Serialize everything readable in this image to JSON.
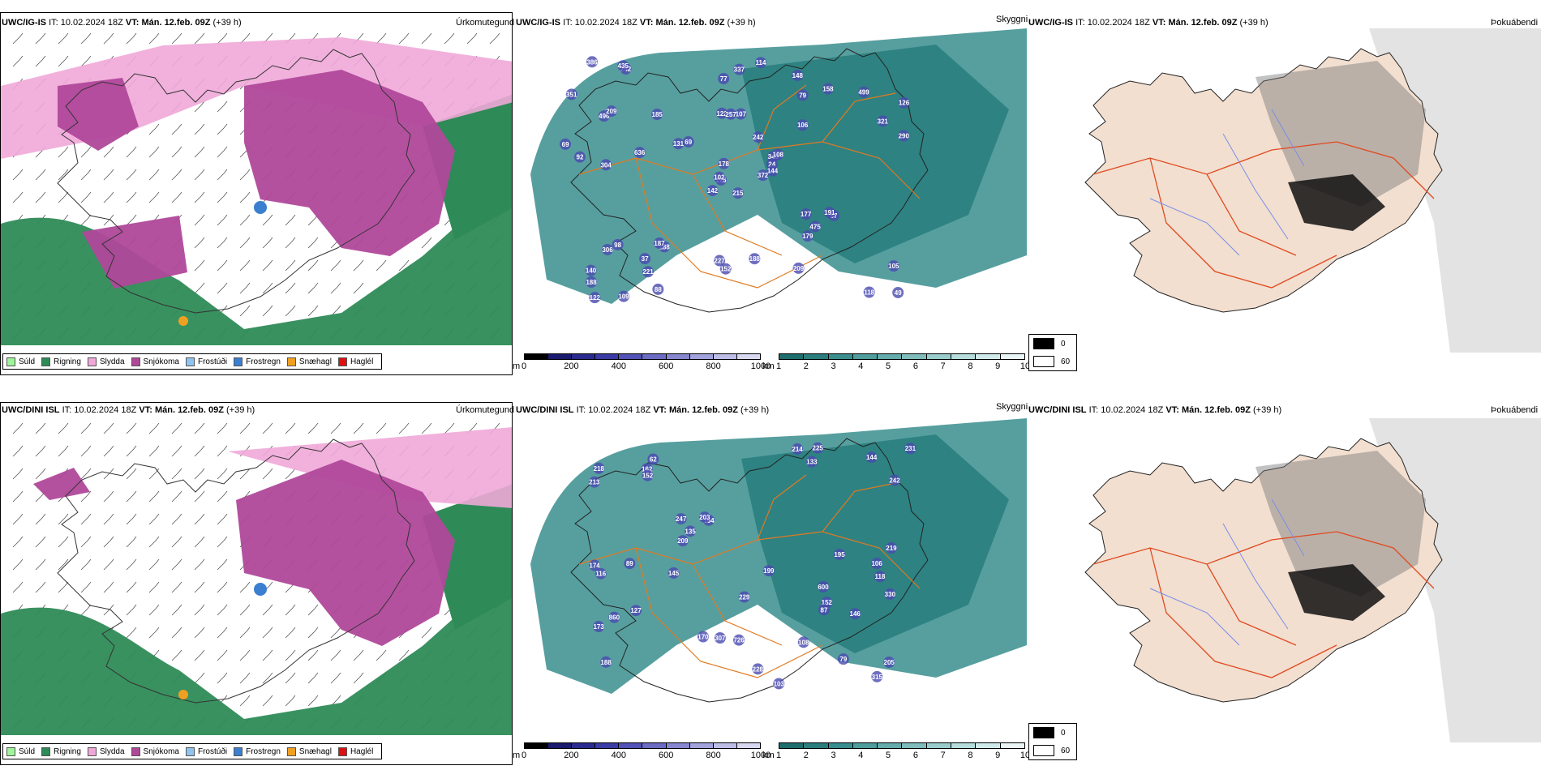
{
  "rows": [
    {
      "model": "UWC/IG-IS",
      "it_label": "IT:",
      "it_value": "10.02.2024 18Z",
      "vt_label": "VT:",
      "vt_value": "Mán. 12.feb. 09Z",
      "lead": "(+39 h)",
      "panel_titles": [
        "Úrkomutegund",
        "Skyggni",
        "Þokuábendi"
      ],
      "snow_depth_labels": [
        "215",
        "496",
        "116",
        "140",
        "349",
        "188",
        "148",
        "107",
        "79",
        "372",
        "242",
        "49",
        "304",
        "126",
        "142",
        "106",
        "109",
        "122",
        "242",
        "98",
        "69",
        "188",
        "221",
        "257",
        "108",
        "67",
        "209",
        "77",
        "92",
        "177",
        "290",
        "102",
        "227",
        "178",
        "185",
        "158",
        "187",
        "118",
        "105",
        "191",
        "114",
        "131",
        "636",
        "179",
        "88",
        "69",
        "24",
        "122",
        "152",
        "144",
        "306",
        "321",
        "351",
        "475",
        "209",
        "37",
        "435",
        "386",
        "188",
        "499",
        "337"
      ]
    },
    {
      "model": "UWC/DINI ISL",
      "it_label": "IT:",
      "it_value": "10.02.2024 18Z",
      "vt_label": "VT:",
      "vt_value": "Mán. 12.feb. 09Z",
      "lead": "(+39 h)",
      "panel_titles": [
        "Úrkomutegund",
        "Skyggni",
        "Þokuábendi"
      ],
      "snow_depth_labels": [
        "600",
        "118",
        "188",
        "62",
        "164",
        "79",
        "173",
        "133",
        "247",
        "103",
        "213",
        "174",
        "218",
        "205",
        "170",
        "219",
        "229",
        "199",
        "203",
        "127",
        "231",
        "144",
        "209",
        "330",
        "214",
        "162",
        "152",
        "116",
        "152",
        "195",
        "228",
        "108",
        "135",
        "145",
        "106",
        "146",
        "87",
        "89",
        "726",
        "860",
        "242",
        "225",
        "315",
        "307"
      ]
    }
  ],
  "precip_legend": [
    {
      "label": "Súld",
      "color": "#9ef59a"
    },
    {
      "label": "Rigning",
      "color": "#2e8b57"
    },
    {
      "label": "Slydda",
      "color": "#f0a8d8"
    },
    {
      "label": "Snjókoma",
      "color": "#b0489a"
    },
    {
      "label": "Frostúði",
      "color": "#8fc4f0"
    },
    {
      "label": "Frostregn",
      "color": "#3a7fd0"
    },
    {
      "label": "Snæhagl",
      "color": "#f0a020"
    },
    {
      "label": "Haglél",
      "color": "#e01010"
    }
  ],
  "height_scale": {
    "unit": "m",
    "ticks": [
      "0",
      "200",
      "400",
      "600",
      "800",
      "1000"
    ],
    "colors": [
      "#000000",
      "#1a1a6e",
      "#2a2a90",
      "#3b3ba8",
      "#5252b8",
      "#6c6cc4",
      "#8787d0",
      "#a2a2dc",
      "#bdbde6",
      "#d8d8f0"
    ]
  },
  "visibility_scale": {
    "unit": "km",
    "ticks": [
      "1",
      "2",
      "3",
      "4",
      "5",
      "6",
      "7",
      "8",
      "9",
      "10"
    ],
    "colors": [
      "#1f6e6e",
      "#2a7e7e",
      "#3a8e8e",
      "#4f9d9d",
      "#66acac",
      "#80bcbc",
      "#9bcccc",
      "#b6dcdc",
      "#d0eaea",
      "#eaf6f6"
    ]
  },
  "fog_legend": [
    {
      "label": "0",
      "color": "#000000"
    },
    {
      "label": "60",
      "color": "#ffffff"
    }
  ]
}
